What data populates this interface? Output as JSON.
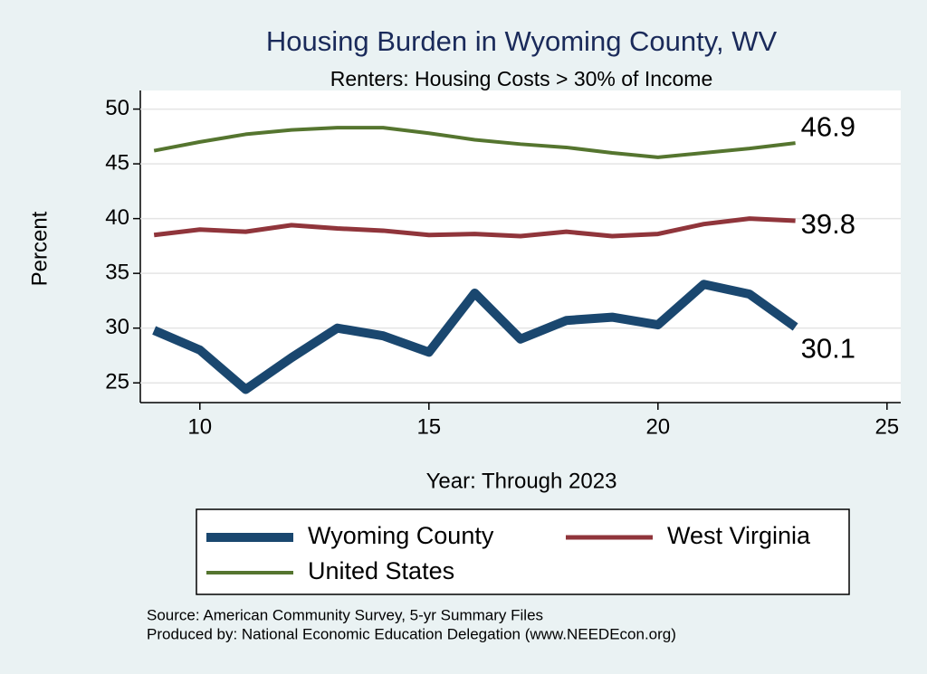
{
  "chart_data": {
    "type": "line",
    "title": "Housing Burden in Wyoming County, WV",
    "subtitle": "Renters: Housing Costs > 30% of Income",
    "x_label": "Year: Through 2023",
    "y_label": "Percent",
    "x": [
      9,
      10,
      11,
      12,
      13,
      14,
      15,
      16,
      17,
      18,
      19,
      20,
      21,
      22,
      23
    ],
    "series": [
      {
        "name": "Wyoming County",
        "color": "#1a476f",
        "values": [
          29.8,
          28.0,
          24.4,
          27.3,
          30.0,
          29.3,
          27.8,
          33.2,
          29.0,
          30.7,
          31.0,
          30.3,
          34.0,
          33.1,
          30.1
        ]
      },
      {
        "name": "West Virginia",
        "color": "#90353b",
        "values": [
          38.5,
          39.0,
          38.8,
          39.4,
          39.1,
          38.9,
          38.5,
          38.6,
          38.4,
          38.8,
          38.4,
          38.6,
          39.5,
          40.0,
          39.8
        ]
      },
      {
        "name": "United States",
        "color": "#55752f",
        "values": [
          46.2,
          47.0,
          47.7,
          48.1,
          48.3,
          48.3,
          47.8,
          47.2,
          46.8,
          46.5,
          46.0,
          45.6,
          46.0,
          46.4,
          46.9
        ]
      }
    ],
    "xlim": [
      8.7,
      25.3
    ],
    "xticks": [
      10,
      15,
      20,
      25
    ],
    "ylim": [
      23.2,
      51.7
    ],
    "yticks": [
      25,
      30,
      35,
      40,
      45,
      50
    ],
    "grid": true,
    "legend": "bottom",
    "notes": [
      "Source: American Community Survey, 5-yr Summary Files",
      "Produced by: National Economic Education Delegation (www.NEEDEcon.org)"
    ]
  }
}
